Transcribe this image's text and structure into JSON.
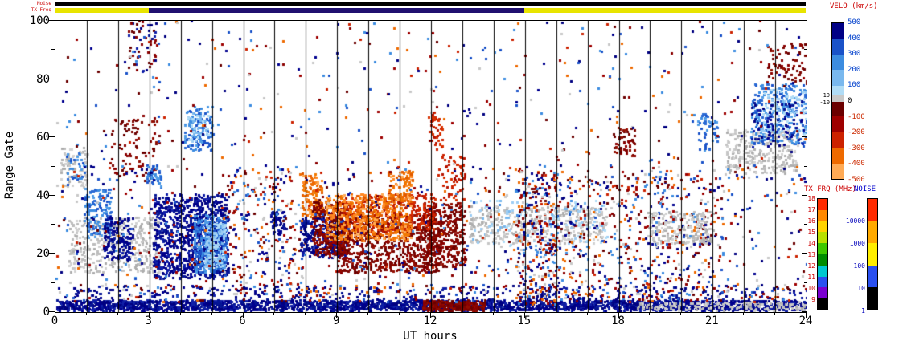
{
  "figure": {
    "xlabel": "UT hours",
    "ylabel": "Range Gate",
    "xticks_major": [
      0,
      3,
      6,
      9,
      12,
      15,
      18,
      21,
      24
    ],
    "xtick_minor_step": 1,
    "yticks_major": [
      0,
      20,
      40,
      60,
      80,
      100
    ],
    "ytick_minor_step": 10,
    "strip_labels": {
      "noise": "Noise",
      "txfreq": "TX Freq"
    }
  },
  "strips": {
    "noise": {
      "segments": [
        {
          "x": [
            0,
            24
          ],
          "color": "#000000"
        }
      ]
    },
    "txfreq": {
      "segments": [
        {
          "x": [
            0,
            3
          ],
          "color": "#e8e400"
        },
        {
          "x": [
            3,
            15
          ],
          "color": "#201070"
        },
        {
          "x": [
            15,
            24
          ],
          "color": "#e8e400"
        }
      ]
    }
  },
  "colorbars": {
    "velo": {
      "title": "VELO (km/s)",
      "title_color": "#cc0000",
      "labels": [
        "500",
        "400",
        "300",
        "200",
        "100",
        "0",
        "-100",
        "-200",
        "-300",
        "-400",
        "-500"
      ],
      "label_colors": {
        "positive": "#0040cc",
        "zero": "#000000",
        "negative": "#cc2a00"
      },
      "segments": [
        "#000085",
        "#1a52c8",
        "#3c8ce0",
        "#79b8ee",
        "#b0dcf6",
        "#6b0000",
        "#9e0000",
        "#cc2200",
        "#ee6a00",
        "#ffaa55"
      ],
      "gray_band": {
        "color": "#c8c8c8",
        "upper_label": "10",
        "lower_label": "-10"
      }
    },
    "txfrq": {
      "title": "TX FRQ (MHz)",
      "title_color": "#cc0000",
      "label_color": "#cc0000",
      "labels": [
        "18",
        "17",
        "16",
        "15",
        "14",
        "13",
        "12",
        "11",
        "10",
        "9"
      ],
      "segments": [
        "#ff2a00",
        "#ff8800",
        "#ffd300",
        "#b8e000",
        "#3ec800",
        "#008c00",
        "#00c8d0",
        "#2a50f0",
        "#7a00d0",
        "#000000"
      ]
    },
    "noise": {
      "title": "NOISE",
      "title_color": "#0000cc",
      "label_color": "#0000bb",
      "labels": [
        "10000",
        "1000",
        "100",
        "10",
        "1"
      ],
      "segments": [
        "#ff2a00",
        "#ffaa00",
        "#ffee00",
        "#2a50f0",
        "#000000"
      ]
    }
  },
  "chart_data": {
    "type": "heatmap",
    "title": "",
    "xlabel": "UT hours",
    "ylabel": "Range Gate",
    "xlim": [
      0,
      24
    ],
    "ylim": [
      0,
      100
    ],
    "grid": "vertical line every 1 hour",
    "legend_position": "right",
    "seed": 1337,
    "cell": {
      "w": 3,
      "h": 3
    },
    "palettes": {
      "navy": [
        "#000080",
        "#00008f",
        "#101fa8",
        "#051594"
      ],
      "blue": [
        "#1a52c8",
        "#2a6ad4",
        "#3c8ce0",
        "#4f9ce6"
      ],
      "lightblue": [
        "#79b8ee",
        "#9ccdf4",
        "#b0dcf6"
      ],
      "darkred": [
        "#6b0000",
        "#7d0500",
        "#8b0000",
        "#930d00"
      ],
      "red": [
        "#b81400",
        "#cc2200",
        "#d83000"
      ],
      "orange": [
        "#e05a00",
        "#ee6a00",
        "#ff8822",
        "#ffaa55",
        "#f07800"
      ],
      "gray": [
        "#c6c6c6",
        "#bcbcbc",
        "#d2d2d2",
        "#aeaeae"
      ],
      "mix": [
        "#6b0000",
        "#000080",
        "#cc2200",
        "#3c8ce0",
        "#c8c8c8",
        "#ee6a00",
        "#9e0000",
        "#1a52c8",
        "#8b0000",
        "#00008f"
      ],
      "mixdark": [
        "#6b0000",
        "#000080",
        "#8b0000",
        "#101fa8"
      ]
    },
    "clusters": [
      {
        "x": [
          0,
          24
        ],
        "g": [
          0,
          3.5
        ],
        "n": 2600,
        "p": "navy"
      },
      {
        "x": [
          11.7,
          13.7
        ],
        "g": [
          0,
          3.5
        ],
        "n": 320,
        "p": "darkred"
      },
      {
        "x": [
          18.5,
          24
        ],
        "g": [
          0,
          3
        ],
        "n": 170,
        "p": "gray"
      },
      {
        "x": [
          0,
          24
        ],
        "g": [
          3,
          8.5
        ],
        "n": 340,
        "p": "navy"
      },
      {
        "x": [
          0,
          24
        ],
        "g": [
          3,
          9
        ],
        "n": 260,
        "p": "mix"
      },
      {
        "x": [
          0.15,
          1.0
        ],
        "g": [
          42,
          56
        ],
        "n": 90,
        "p": "gray"
      },
      {
        "x": [
          0.3,
          0.95
        ],
        "g": [
          45,
          54
        ],
        "n": 35,
        "p": "blue"
      },
      {
        "x": [
          0.4,
          3.3
        ],
        "g": [
          13,
          32
        ],
        "n": 380,
        "p": "gray"
      },
      {
        "x": [
          0.9,
          1.75
        ],
        "g": [
          25,
          42
        ],
        "n": 150,
        "p": "blue"
      },
      {
        "x": [
          1.5,
          2.45
        ],
        "g": [
          17,
          32
        ],
        "n": 170,
        "p": "navy"
      },
      {
        "x": [
          1.7,
          3.3
        ],
        "g": [
          46,
          66
        ],
        "n": 90,
        "p": "darkred"
      },
      {
        "x": [
          2.3,
          3.2
        ],
        "g": [
          82,
          100
        ],
        "n": 55,
        "p": "mixdark"
      },
      {
        "x": [
          3.1,
          5.5
        ],
        "g": [
          11,
          40
        ],
        "n": 950,
        "p": "navy"
      },
      {
        "x": [
          4.4,
          5.45
        ],
        "g": [
          13,
          33
        ],
        "n": 400,
        "p": "blue"
      },
      {
        "x": [
          4.75,
          5.4
        ],
        "g": [
          15,
          30
        ],
        "n": 160,
        "p": "lightblue"
      },
      {
        "x": [
          4.1,
          5.0
        ],
        "g": [
          55,
          70
        ],
        "n": 120,
        "p": "blue"
      },
      {
        "x": [
          4.2,
          4.9
        ],
        "g": [
          58,
          68
        ],
        "n": 45,
        "p": "lightblue"
      },
      {
        "x": [
          5.4,
          8.0
        ],
        "g": [
          5,
          50
        ],
        "n": 210,
        "p": "mix"
      },
      {
        "x": [
          6.85,
          7.3
        ],
        "g": [
          26,
          34
        ],
        "n": 60,
        "p": "navy"
      },
      {
        "x": [
          7.85,
          8.5
        ],
        "g": [
          32,
          47
        ],
        "n": 130,
        "p": "orange"
      },
      {
        "x": [
          7.8,
          9.3
        ],
        "g": [
          18,
          32
        ],
        "n": 280,
        "p": "navy"
      },
      {
        "x": [
          8.2,
          9.4
        ],
        "g": [
          19,
          38
        ],
        "n": 320,
        "p": "darkred"
      },
      {
        "x": [
          9.0,
          12.3
        ],
        "g": [
          13,
          33
        ],
        "n": 750,
        "p": "darkred"
      },
      {
        "x": [
          11.7,
          13.05
        ],
        "g": [
          15,
          37
        ],
        "n": 330,
        "p": "darkred"
      },
      {
        "x": [
          9.2,
          12.1
        ],
        "g": [
          27,
          40
        ],
        "n": 320,
        "p": "red"
      },
      {
        "x": [
          8.6,
          11.35
        ],
        "g": [
          24,
          40
        ],
        "n": 560,
        "p": "orange"
      },
      {
        "x": [
          10.6,
          11.4
        ],
        "g": [
          37,
          48
        ],
        "n": 100,
        "p": "orange"
      },
      {
        "x": [
          12.3,
          13.1
        ],
        "g": [
          38,
          54
        ],
        "n": 60,
        "p": "red"
      },
      {
        "x": [
          11.9,
          12.35
        ],
        "g": [
          55,
          68
        ],
        "n": 45,
        "p": "red"
      },
      {
        "x": [
          13.2,
          17.6
        ],
        "g": [
          23,
          36
        ],
        "n": 430,
        "p": "gray"
      },
      {
        "x": [
          13.2,
          17.6
        ],
        "g": [
          22,
          38
        ],
        "n": 120,
        "p": "lightblue"
      },
      {
        "x": [
          14.7,
          16.1
        ],
        "g": [
          2,
          48
        ],
        "n": 330,
        "p": "mix"
      },
      {
        "x": [
          16,
          21.3
        ],
        "g": [
          3,
          48
        ],
        "n": 430,
        "p": "mix"
      },
      {
        "x": [
          18.9,
          21.0
        ],
        "g": [
          23,
          34
        ],
        "n": 200,
        "p": "gray"
      },
      {
        "x": [
          17.8,
          18.5
        ],
        "g": [
          53,
          63
        ],
        "n": 55,
        "p": "darkred"
      },
      {
        "x": [
          20.5,
          21.15
        ],
        "g": [
          55,
          68
        ],
        "n": 50,
        "p": "blue"
      },
      {
        "x": [
          21.4,
          23.7
        ],
        "g": [
          47,
          62
        ],
        "n": 330,
        "p": "gray"
      },
      {
        "x": [
          22.2,
          24
        ],
        "g": [
          57,
          78
        ],
        "n": 270,
        "p": "blue"
      },
      {
        "x": [
          22.5,
          24
        ],
        "g": [
          60,
          76
        ],
        "n": 110,
        "p": "lightblue"
      },
      {
        "x": [
          22.2,
          23.9
        ],
        "g": [
          56,
          72
        ],
        "n": 80,
        "p": "navy"
      },
      {
        "x": [
          22.7,
          24
        ],
        "g": [
          78,
          92
        ],
        "n": 70,
        "p": "darkred"
      },
      {
        "x": [
          2.9,
          3.35
        ],
        "g": [
          42,
          50
        ],
        "n": 45,
        "p": "blue"
      },
      {
        "x": [
          0,
          24
        ],
        "g": [
          45,
          100
        ],
        "n": 430,
        "p": "mix"
      },
      {
        "x": [
          0,
          24
        ],
        "g": [
          8,
          50
        ],
        "n": 720,
        "p": "mix"
      }
    ]
  }
}
